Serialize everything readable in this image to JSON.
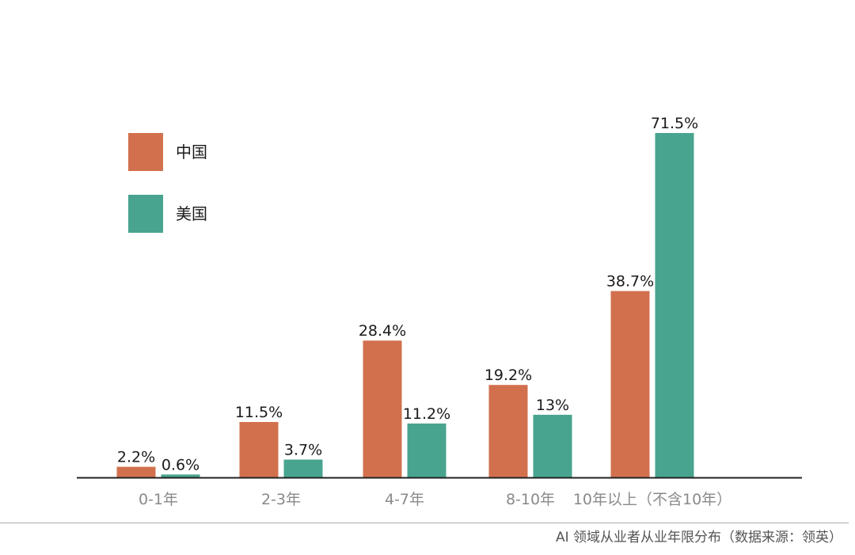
{
  "colors": {
    "china": "#D2704E",
    "usa": "#48A48F",
    "axis": "#222222",
    "footer_line": "#aaaaaa"
  },
  "footer": {
    "caption": "AI 领域从业者从业年限分布（数据来源：领英）"
  },
  "chart_data": {
    "type": "bar",
    "categories": [
      "0-1年",
      "2-3年",
      "4-7年",
      "8-10年",
      "10年以上（不含10年）"
    ],
    "series": [
      {
        "name": "中国",
        "values": [
          2.2,
          11.5,
          28.4,
          19.2,
          38.7
        ],
        "labels": [
          "2.2%",
          "11.5%",
          "28.4%",
          "19.2%",
          "38.7%"
        ]
      },
      {
        "name": "美国",
        "values": [
          0.6,
          3.7,
          11.2,
          13,
          71.5
        ],
        "labels": [
          "0.6%",
          "3.7%",
          "11.2%",
          "13%",
          "71.5%"
        ]
      }
    ],
    "title": "",
    "xlabel": "",
    "ylabel": "",
    "ylim": [
      0,
      80
    ],
    "grid": false,
    "legend": "top-left"
  }
}
